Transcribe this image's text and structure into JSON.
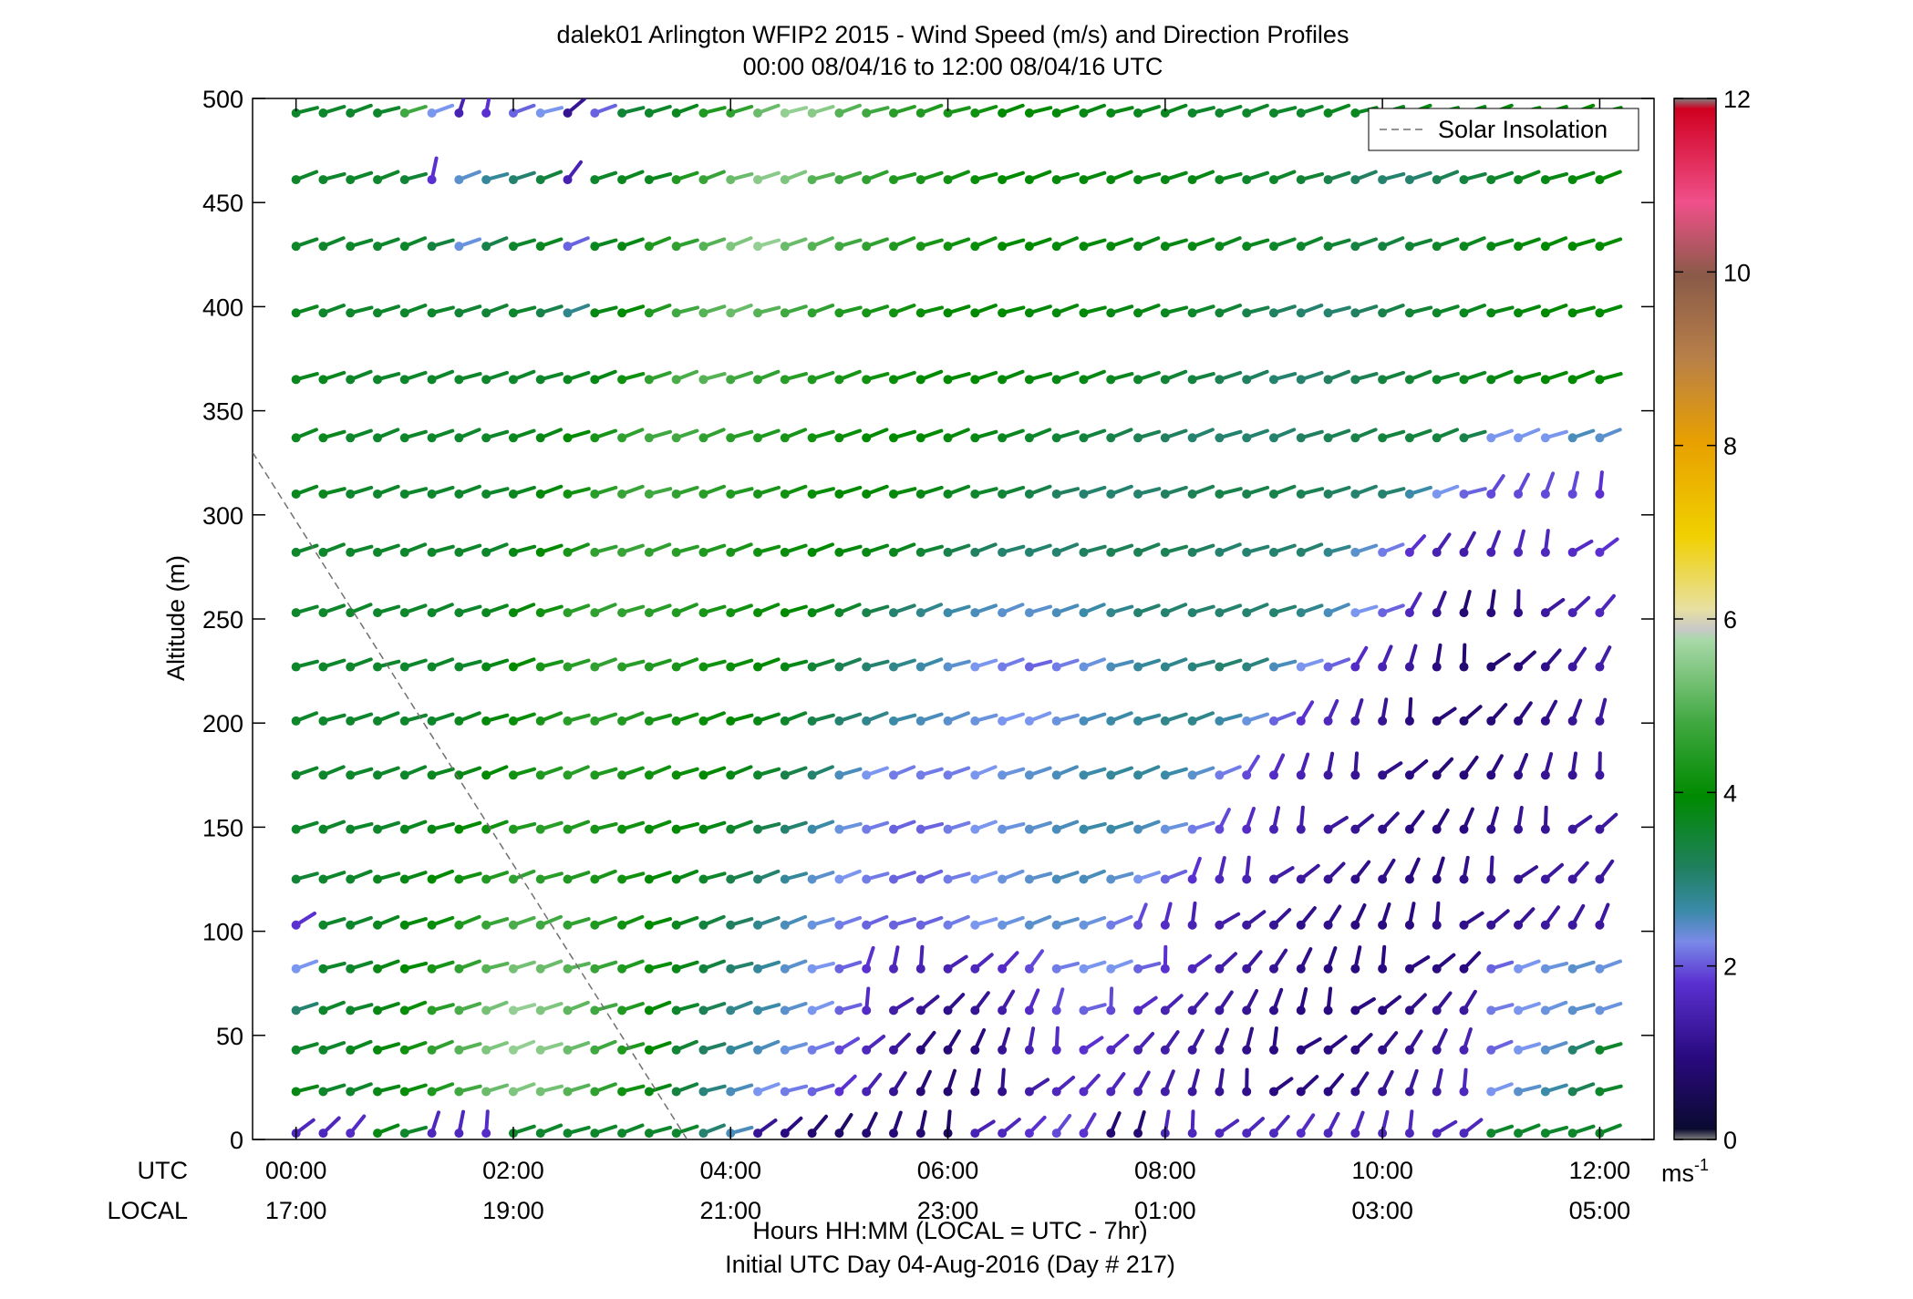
{
  "chart_data": {
    "type": "wind-barb-profile",
    "title_line1": "dalek01 Arlington WFIP2 2015 - Wind Speed (m/s) and Direction Profiles",
    "title_line2": "00:00 08/04/16 to 12:00 08/04/16  UTC",
    "ylabel": "Altitude (m)",
    "ylim": [
      0,
      500
    ],
    "yticks": [
      "0",
      "50",
      "100",
      "150",
      "200",
      "250",
      "300",
      "350",
      "400",
      "450",
      "500"
    ],
    "xlim_hours": [
      -0.4,
      12.5
    ],
    "utc_row_label": "UTC",
    "local_row_label": "LOCAL",
    "utc_ticks": [
      "00:00",
      "02:00",
      "04:00",
      "06:00",
      "08:00",
      "10:00",
      "12:00"
    ],
    "local_ticks": [
      "17:00",
      "19:00",
      "21:00",
      "23:00",
      "01:00",
      "03:00",
      "05:00"
    ],
    "xlabel_line1": "Hours HH:MM  (LOCAL = UTC - 7hr)",
    "xlabel_line2": "Initial UTC Day 04-Aug-2016 (Day # 217)",
    "legend": {
      "label": "Solar Insolation",
      "placement": "top-right",
      "style": "dashed",
      "color": "#808080"
    },
    "solar_insolation_line": [
      [
        -0.4,
        330
      ],
      [
        3.6,
        0
      ]
    ],
    "colorbar": {
      "range": [
        0,
        12
      ],
      "ticks": [
        "0",
        "2",
        "4",
        "6",
        "8",
        "10",
        "12"
      ],
      "unit_label": "ms",
      "unit_exponent": "-1"
    },
    "levels_m": [
      3,
      23,
      43,
      62,
      82,
      103,
      125,
      149,
      175,
      201,
      227,
      253,
      282,
      310,
      337,
      365,
      397,
      429,
      461,
      493
    ],
    "time_start_hours": 0.0,
    "time_step_hours": 0.25,
    "time_count": 49,
    "speed_profiles": [
      {
        "altitude": 493,
        "speeds_ms": [
          3.6,
          3.6,
          3.6,
          3.6,
          4.8,
          2.2,
          1.5,
          1.8,
          2.0,
          2.2,
          1.2,
          2.0,
          3.5,
          3.6,
          3.7,
          4.4,
          4.6,
          5.2,
          5.6,
          5.5,
          5.0,
          4.8,
          4.5,
          4.4,
          4.3,
          4.2,
          4.0,
          4.0,
          3.9,
          3.8,
          3.8,
          3.7,
          3.7,
          3.6,
          3.6,
          3.6,
          3.6,
          3.6,
          3.7,
          3.7,
          3.7,
          3.8,
          3.8,
          3.8,
          3.9,
          3.9,
          3.9,
          4.0,
          4.0
        ]
      },
      {
        "altitude": 461,
        "speeds_ms": [
          3.6,
          3.6,
          3.6,
          3.6,
          3.5,
          1.8,
          2.4,
          2.7,
          3.0,
          3.4,
          1.5,
          3.6,
          3.7,
          3.7,
          4.4,
          4.7,
          5.2,
          5.5,
          5.4,
          5.0,
          4.8,
          4.6,
          4.4,
          4.3,
          4.2,
          4.1,
          4.0,
          4.0,
          3.9,
          3.9,
          3.9,
          3.8,
          3.8,
          3.8,
          3.7,
          3.6,
          3.6,
          3.5,
          3.3,
          3.1,
          3.0,
          3.0,
          3.2,
          3.4,
          3.6,
          3.7,
          3.8,
          3.9,
          4.0
        ]
      },
      {
        "altitude": 429,
        "speeds_ms": [
          3.6,
          3.6,
          3.6,
          3.6,
          3.6,
          3.4,
          2.3,
          3.3,
          3.6,
          3.7,
          2.0,
          3.7,
          3.8,
          4.4,
          4.6,
          5.0,
          5.4,
          5.6,
          5.2,
          5.0,
          4.8,
          4.6,
          4.4,
          4.3,
          4.2,
          4.1,
          4.0,
          4.0,
          3.9,
          3.9,
          3.9,
          3.8,
          3.8,
          3.8,
          3.7,
          3.7,
          3.6,
          3.6,
          3.5,
          3.4,
          3.4,
          3.5,
          3.6,
          3.7,
          3.8,
          3.9,
          4.0,
          4.0,
          4.0
        ]
      },
      {
        "altitude": 397,
        "speeds_ms": [
          3.7,
          3.6,
          3.6,
          3.6,
          3.6,
          3.6,
          3.5,
          3.5,
          3.6,
          3.3,
          2.8,
          3.8,
          4.0,
          4.4,
          4.8,
          5.0,
          5.2,
          5.0,
          4.8,
          4.6,
          4.4,
          4.3,
          4.2,
          4.1,
          4.0,
          4.0,
          4.0,
          3.9,
          3.9,
          3.9,
          3.8,
          3.8,
          3.7,
          3.6,
          3.5,
          3.3,
          3.1,
          3.0,
          3.0,
          3.1,
          3.3,
          3.5,
          3.6,
          3.7,
          3.8,
          3.9,
          4.0,
          4.0,
          4.0
        ]
      },
      {
        "altitude": 365,
        "speeds_ms": [
          3.7,
          3.7,
          3.6,
          3.6,
          3.6,
          3.6,
          3.6,
          3.6,
          3.6,
          3.6,
          3.7,
          3.8,
          4.2,
          4.6,
          4.9,
          5.0,
          4.8,
          4.6,
          4.5,
          4.4,
          4.3,
          4.2,
          4.1,
          4.0,
          4.0,
          4.0,
          3.9,
          3.9,
          3.8,
          3.8,
          3.7,
          3.6,
          3.5,
          3.4,
          3.2,
          3.1,
          3.0,
          3.0,
          3.1,
          3.2,
          3.4,
          3.5,
          3.6,
          3.7,
          3.8,
          3.9,
          4.0,
          4.0,
          4.0
        ]
      },
      {
        "altitude": 337,
        "speeds_ms": [
          3.7,
          3.7,
          3.6,
          3.6,
          3.6,
          3.6,
          3.6,
          3.6,
          3.7,
          3.8,
          4.0,
          4.3,
          4.6,
          4.8,
          4.8,
          4.6,
          4.5,
          4.4,
          4.3,
          4.2,
          4.1,
          4.0,
          4.0,
          4.0,
          3.9,
          3.8,
          3.7,
          3.6,
          3.5,
          3.4,
          3.3,
          3.2,
          3.1,
          3.0,
          3.0,
          3.0,
          3.0,
          3.1,
          3.2,
          3.3,
          3.4,
          3.4,
          3.4,
          3.3,
          2.2,
          2.2,
          2.2,
          2.5,
          2.4
        ]
      },
      {
        "altitude": 310,
        "speeds_ms": [
          3.7,
          3.7,
          3.6,
          3.6,
          3.6,
          3.6,
          3.6,
          3.6,
          3.7,
          3.9,
          4.2,
          4.5,
          4.7,
          4.8,
          4.6,
          4.5,
          4.4,
          4.3,
          4.2,
          4.1,
          4.0,
          4.0,
          3.9,
          3.8,
          3.7,
          3.6,
          3.5,
          3.3,
          3.1,
          3.0,
          3.0,
          3.0,
          3.1,
          3.2,
          3.3,
          3.3,
          3.3,
          3.2,
          3.1,
          3.0,
          3.0,
          2.6,
          2.2,
          2.0,
          1.9,
          1.9,
          1.9,
          1.9,
          1.8
        ]
      },
      {
        "altitude": 282,
        "speeds_ms": [
          3.6,
          3.6,
          3.6,
          3.6,
          3.6,
          3.6,
          3.6,
          3.6,
          3.8,
          4.0,
          4.3,
          4.6,
          4.7,
          4.6,
          4.5,
          4.4,
          4.3,
          4.2,
          4.1,
          4.0,
          3.9,
          3.8,
          3.7,
          3.5,
          3.3,
          3.1,
          3.0,
          3.0,
          3.0,
          3.1,
          3.2,
          3.2,
          3.2,
          3.1,
          3.0,
          3.0,
          3.0,
          3.0,
          2.8,
          2.4,
          2.1,
          1.8,
          1.5,
          1.4,
          1.5,
          1.6,
          1.6,
          1.7,
          1.8
        ]
      },
      {
        "altitude": 253,
        "speeds_ms": [
          3.6,
          3.6,
          3.6,
          3.6,
          3.6,
          3.6,
          3.6,
          3.7,
          3.9,
          4.2,
          4.5,
          4.6,
          4.6,
          4.5,
          4.4,
          4.3,
          4.2,
          4.1,
          4.0,
          3.8,
          3.6,
          3.3,
          3.0,
          2.8,
          2.6,
          2.5,
          2.4,
          2.4,
          2.5,
          2.6,
          2.8,
          3.0,
          3.0,
          3.0,
          3.0,
          3.0,
          3.0,
          2.8,
          2.5,
          2.2,
          2.0,
          1.6,
          1.2,
          0.8,
          0.9,
          1.1,
          1.3,
          1.5,
          1.6
        ]
      },
      {
        "altitude": 227,
        "speeds_ms": [
          3.6,
          3.6,
          3.6,
          3.6,
          3.6,
          3.6,
          3.6,
          3.8,
          4.0,
          4.3,
          4.5,
          4.6,
          4.5,
          4.4,
          4.3,
          4.2,
          4.1,
          4.0,
          3.8,
          3.5,
          3.2,
          3.0,
          2.8,
          2.6,
          2.4,
          2.2,
          2.1,
          2.0,
          2.1,
          2.3,
          2.5,
          2.7,
          2.8,
          2.9,
          3.0,
          2.9,
          2.5,
          2.2,
          2.0,
          1.7,
          1.5,
          1.3,
          1.0,
          0.8,
          0.8,
          0.9,
          1.1,
          1.3,
          1.4
        ]
      },
      {
        "altitude": 201,
        "speeds_ms": [
          3.6,
          3.6,
          3.6,
          3.6,
          3.6,
          3.6,
          3.7,
          3.9,
          4.1,
          4.3,
          4.5,
          4.5,
          4.4,
          4.3,
          4.2,
          4.1,
          4.0,
          3.8,
          3.6,
          3.3,
          3.0,
          2.8,
          2.6,
          2.5,
          2.4,
          2.3,
          2.2,
          2.2,
          2.3,
          2.5,
          2.6,
          2.7,
          2.8,
          2.8,
          2.6,
          2.3,
          2.0,
          1.8,
          1.6,
          1.4,
          1.2,
          1.0,
          0.9,
          0.8,
          0.9,
          1.0,
          1.1,
          1.2,
          1.3
        ]
      },
      {
        "altitude": 175,
        "speeds_ms": [
          3.6,
          3.6,
          3.6,
          3.6,
          3.6,
          3.7,
          3.8,
          4.0,
          4.2,
          4.4,
          4.5,
          4.4,
          4.3,
          4.2,
          4.1,
          4.0,
          3.8,
          3.6,
          3.3,
          3.0,
          2.5,
          2.2,
          2.1,
          2.1,
          2.1,
          2.2,
          2.3,
          2.4,
          2.5,
          2.6,
          2.7,
          2.7,
          2.6,
          2.4,
          2.1,
          1.9,
          1.7,
          1.5,
          1.3,
          1.2,
          1.1,
          1.0,
          0.9,
          0.9,
          1.0,
          1.1,
          1.2,
          1.2,
          1.3
        ]
      },
      {
        "altitude": 149,
        "speeds_ms": [
          3.6,
          3.6,
          3.6,
          3.6,
          3.7,
          3.8,
          4.0,
          4.2,
          4.4,
          4.5,
          4.4,
          4.3,
          4.2,
          4.1,
          4.0,
          3.8,
          3.6,
          3.3,
          3.0,
          2.6,
          2.3,
          2.1,
          2.0,
          2.0,
          2.1,
          2.2,
          2.3,
          2.4,
          2.5,
          2.6,
          2.6,
          2.5,
          2.3,
          2.1,
          1.9,
          1.7,
          1.5,
          1.4,
          1.3,
          1.2,
          1.1,
          1.0,
          1.0,
          1.0,
          1.1,
          1.2,
          1.2,
          1.3,
          1.3
        ]
      },
      {
        "altitude": 125,
        "speeds_ms": [
          3.5,
          3.6,
          3.6,
          3.7,
          3.8,
          4.0,
          4.2,
          4.4,
          4.6,
          4.5,
          4.4,
          4.3,
          4.2,
          4.0,
          3.8,
          3.6,
          3.3,
          3.0,
          2.7,
          2.4,
          2.2,
          2.1,
          2.0,
          2.0,
          2.1,
          2.2,
          2.3,
          2.4,
          2.5,
          2.5,
          2.4,
          2.2,
          2.0,
          1.8,
          1.6,
          1.5,
          1.4,
          1.3,
          1.2,
          1.1,
          1.1,
          1.0,
          1.0,
          1.1,
          1.2,
          1.2,
          1.3,
          1.3,
          1.3
        ]
      },
      {
        "altitude": 103,
        "speeds_ms": [
          1.8,
          3.6,
          3.6,
          3.7,
          3.9,
          4.1,
          4.4,
          4.7,
          4.9,
          4.8,
          4.6,
          4.4,
          4.2,
          4.0,
          3.7,
          3.4,
          3.1,
          2.8,
          2.5,
          2.3,
          2.1,
          2.0,
          2.0,
          2.0,
          2.1,
          2.2,
          2.3,
          2.4,
          2.4,
          2.3,
          2.1,
          1.9,
          1.7,
          1.5,
          1.4,
          1.3,
          1.2,
          1.1,
          1.1,
          1.0,
          1.0,
          1.0,
          1.1,
          1.1,
          1.2,
          1.2,
          1.3,
          1.3,
          1.3
        ]
      },
      {
        "altitude": 82,
        "speeds_ms": [
          2.2,
          3.6,
          3.6,
          3.8,
          4.0,
          4.3,
          4.6,
          5.0,
          5.3,
          5.2,
          5.0,
          4.7,
          4.4,
          4.1,
          3.8,
          3.4,
          3.0,
          2.7,
          2.4,
          2.2,
          2.0,
          1.8,
          1.6,
          1.5,
          1.5,
          1.6,
          1.7,
          1.9,
          2.1,
          2.2,
          2.2,
          2.0,
          1.8,
          1.6,
          1.4,
          1.3,
          1.2,
          1.1,
          1.0,
          1.0,
          1.0,
          1.0,
          1.0,
          1.0,
          2.0,
          2.2,
          2.3,
          2.4,
          2.3
        ]
      },
      {
        "altitude": 62,
        "speeds_ms": [
          3.0,
          3.6,
          3.6,
          3.8,
          4.1,
          4.5,
          4.9,
          5.3,
          5.6,
          5.4,
          5.1,
          4.8,
          4.4,
          4.0,
          3.6,
          3.2,
          2.8,
          2.6,
          2.4,
          2.2,
          2.0,
          1.7,
          1.4,
          1.2,
          1.1,
          1.2,
          1.4,
          1.7,
          1.9,
          2.0,
          1.9,
          1.7,
          1.5,
          1.4,
          1.3,
          1.2,
          1.1,
          1.0,
          1.0,
          1.0,
          1.0,
          1.1,
          1.2,
          1.3,
          2.1,
          2.2,
          2.3,
          2.4,
          2.3
        ]
      },
      {
        "altitude": 43,
        "speeds_ms": [
          3.6,
          3.6,
          3.7,
          3.9,
          4.2,
          4.6,
          5.0,
          5.4,
          5.6,
          5.5,
          5.2,
          4.8,
          4.4,
          4.0,
          3.5,
          3.1,
          2.7,
          2.5,
          2.3,
          2.1,
          1.9,
          1.6,
          1.3,
          1.0,
          0.9,
          1.0,
          1.2,
          1.5,
          1.7,
          1.8,
          1.7,
          1.5,
          1.4,
          1.3,
          1.2,
          1.1,
          1.0,
          1.0,
          1.0,
          1.0,
          1.1,
          1.2,
          1.3,
          1.5,
          2.0,
          2.2,
          2.4,
          3.0,
          3.6
        ]
      },
      {
        "altitude": 23,
        "speeds_ms": [
          3.8,
          3.6,
          3.6,
          3.8,
          4.1,
          4.4,
          4.8,
          5.2,
          5.4,
          5.3,
          5.0,
          4.6,
          4.2,
          3.8,
          3.4,
          2.9,
          2.5,
          2.2,
          2.1,
          2.0,
          1.8,
          1.5,
          1.2,
          0.9,
          0.8,
          0.9,
          1.1,
          1.4,
          1.6,
          1.7,
          1.6,
          1.5,
          1.4,
          1.3,
          1.2,
          1.1,
          1.0,
          1.0,
          1.0,
          1.1,
          1.2,
          1.3,
          1.4,
          1.6,
          2.2,
          2.4,
          2.6,
          3.2,
          3.6
        ]
      },
      {
        "altitude": 3,
        "speeds_ms": [
          1.6,
          1.6,
          1.7,
          3.8,
          3.6,
          1.6,
          1.6,
          1.7,
          3.6,
          3.6,
          3.6,
          3.6,
          3.6,
          3.6,
          3.6,
          3.0,
          2.5,
          1.2,
          1.0,
          0.8,
          0.7,
          0.8,
          0.9,
          0.8,
          0.7,
          1.5,
          1.6,
          1.8,
          1.9,
          1.8,
          0.8,
          0.8,
          1.6,
          1.6,
          1.6,
          1.6,
          1.6,
          1.7,
          1.6,
          1.6,
          1.6,
          1.6,
          1.6,
          1.6,
          3.6,
          3.6,
          3.6,
          3.6,
          3.6
        ]
      }
    ]
  }
}
